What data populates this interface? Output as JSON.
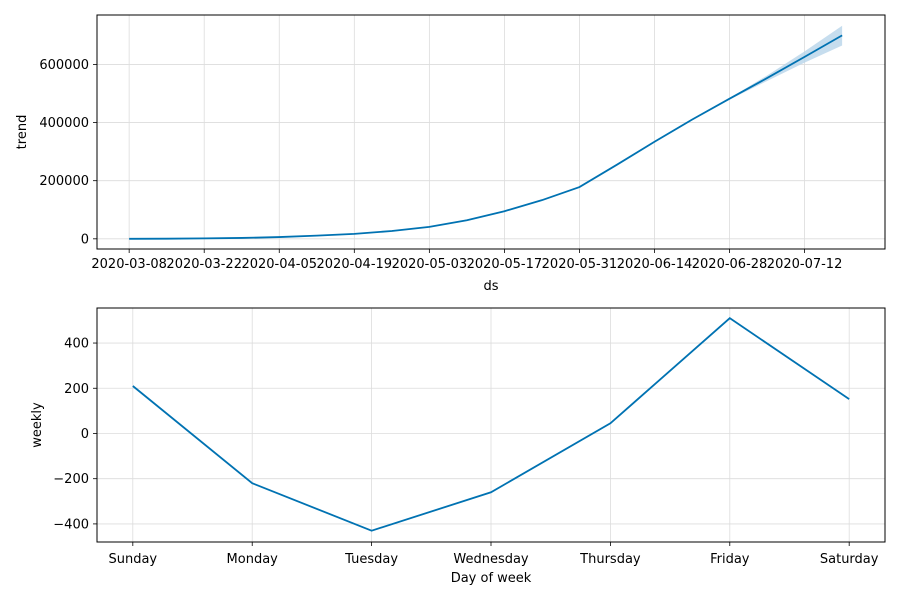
{
  "chart_data": [
    {
      "type": "line",
      "title": "",
      "xlabel": "ds",
      "ylabel": "trend",
      "x_tick_labels": [
        "2020-03-08",
        "2020-03-22",
        "2020-04-05",
        "2020-04-19",
        "2020-05-03",
        "2020-05-17",
        "2020-05-31",
        "2020-06-14",
        "2020-06-28",
        "2020-07-12"
      ],
      "y_ticks": [
        0,
        200000,
        400000,
        600000
      ],
      "y_tick_labels": [
        "0",
        "200000",
        "400000",
        "600000"
      ],
      "xlim": [
        "2020-03-02",
        "2020-07-27"
      ],
      "ylim": [
        -35000,
        770000
      ],
      "grid": true,
      "series": [
        {
          "x": [
            "2020-03-08",
            "2020-03-15",
            "2020-03-22",
            "2020-03-29",
            "2020-04-05",
            "2020-04-12",
            "2020-04-19",
            "2020-04-26",
            "2020-05-03",
            "2020-05-10",
            "2020-05-17",
            "2020-05-24",
            "2020-05-31",
            "2020-06-07",
            "2020-06-14",
            "2020-06-21",
            "2020-06-28",
            "2020-07-05",
            "2020-07-12",
            "2020-07-19"
          ],
          "y": [
            0,
            500,
            1500,
            3000,
            6000,
            11000,
            17000,
            27000,
            41000,
            64000,
            95000,
            133000,
            178000,
            255000,
            334000,
            410000,
            482000,
            553000,
            626000,
            700000
          ],
          "upper": [
            0,
            500,
            1500,
            3000,
            6000,
            11000,
            17000,
            27000,
            41000,
            64000,
            95000,
            133000,
            178000,
            255000,
            334000,
            410000,
            484000,
            562000,
            645000,
            733000
          ],
          "lower": [
            0,
            500,
            1500,
            3000,
            6000,
            11000,
            17000,
            27000,
            41000,
            64000,
            95000,
            133000,
            178000,
            255000,
            334000,
            410000,
            479000,
            543000,
            606000,
            665000
          ]
        }
      ],
      "colors": {
        "line": "#0072B2",
        "band": "#B8D4EA",
        "grid": "#DCDCDC"
      }
    },
    {
      "type": "line",
      "title": "",
      "xlabel": "Day of week",
      "ylabel": "weekly",
      "categories": [
        "Sunday",
        "Monday",
        "Tuesday",
        "Wednesday",
        "Thursday",
        "Friday",
        "Saturday"
      ],
      "y_ticks": [
        -400,
        -200,
        0,
        200,
        400
      ],
      "y_tick_labels": [
        "−400",
        "−200",
        "0",
        "200",
        "400"
      ],
      "ylim": [
        -480,
        555
      ],
      "grid": true,
      "series": [
        {
          "values": [
            210,
            -220,
            -430,
            -260,
            45,
            510,
            152
          ]
        }
      ],
      "colors": {
        "line": "#0072B2",
        "grid": "#DCDCDC"
      }
    }
  ]
}
